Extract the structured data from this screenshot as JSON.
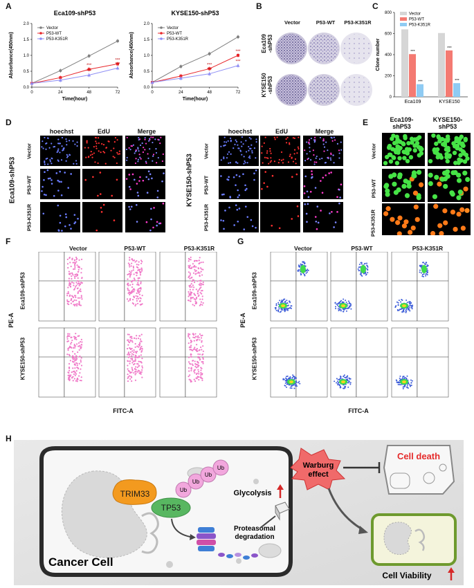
{
  "panels": {
    "A": "A",
    "B": "B",
    "C": "C",
    "D": "D",
    "E": "E",
    "F": "F",
    "G": "G",
    "H": "H"
  },
  "chart_data": [
    {
      "type": "line",
      "title": "Eca109-shP53",
      "xlabel": "Time(hour)",
      "ylabel": "Absorbance(450nm)",
      "x": [
        0,
        24,
        48,
        72
      ],
      "ylim": [
        0,
        2.0
      ],
      "yticks": [
        "0.0",
        "0.5",
        "1.0",
        "1.5",
        "2.0"
      ],
      "xticks": [
        "0",
        "24",
        "48",
        "72"
      ],
      "series": [
        {
          "name": "Vector",
          "color": "#7f7f7f",
          "values": [
            0.12,
            0.52,
            0.98,
            1.45
          ]
        },
        {
          "name": "P53-WT",
          "color": "#e8262a",
          "values": [
            0.12,
            0.3,
            0.56,
            0.73
          ]
        },
        {
          "name": "P53-K351R",
          "color": "#8e8ef5",
          "values": [
            0.12,
            0.22,
            0.38,
            0.6
          ]
        }
      ],
      "annotations": [
        "***",
        "***",
        "***",
        "***"
      ]
    },
    {
      "type": "line",
      "title": "KYSE150-shP53",
      "xlabel": "Time(hour)",
      "ylabel": "Absorbance(450nm)",
      "x": [
        0,
        24,
        48,
        72
      ],
      "ylim": [
        0,
        2.0
      ],
      "yticks": [
        "0.0",
        "0.5",
        "1.0",
        "1.5",
        "2.0"
      ],
      "xticks": [
        "0",
        "24",
        "48",
        "72"
      ],
      "series": [
        {
          "name": "Vector",
          "color": "#7f7f7f",
          "values": [
            0.15,
            0.65,
            1.05,
            1.58
          ]
        },
        {
          "name": "P53-WT",
          "color": "#e8262a",
          "values": [
            0.15,
            0.35,
            0.58,
            1.0
          ]
        },
        {
          "name": "P53-K351R",
          "color": "#8e8ef5",
          "values": [
            0.15,
            0.28,
            0.42,
            0.68
          ]
        }
      ],
      "annotations": [
        "***",
        "***",
        "***",
        "***"
      ]
    },
    {
      "type": "bar",
      "xlabel": "",
      "ylabel": "Clone number",
      "categories": [
        "Eca109",
        "KYSE150"
      ],
      "ylim": [
        0,
        800
      ],
      "yticks": [
        "0",
        "200",
        "400",
        "600",
        "800"
      ],
      "series": [
        {
          "name": "Vector",
          "color": "#d6d6d6",
          "values": [
            640,
            605
          ]
        },
        {
          "name": "P53-WT",
          "color": "#f47a72",
          "values": [
            405,
            440
          ]
        },
        {
          "name": "P53-K351R",
          "color": "#8fcbf3",
          "values": [
            120,
            130
          ]
        }
      ],
      "annotations": [
        "***",
        "***",
        "***",
        "***"
      ]
    }
  ],
  "panelB": {
    "columns": [
      "Vector",
      "P53-WT",
      "P53-K351R"
    ],
    "rows": [
      "Eca109\n-shP53",
      "KYSE150\n-shP53"
    ]
  },
  "panelD": {
    "columns": [
      "hoechst",
      "EdU",
      "Merge"
    ],
    "left_title": "Eca109-shP53",
    "right_title": "KYSE150-shP53",
    "rows": [
      "Vector",
      "P53-WT",
      "P53-K351R"
    ]
  },
  "panelE": {
    "columns": [
      "Eca109-\nshP53",
      "KYSE150-\nshP53"
    ],
    "rows": [
      "Vector",
      "P53-WT",
      "P53-K351R"
    ]
  },
  "panelF": {
    "columns": [
      "Vector",
      "P53-WT",
      "P53-K351R"
    ],
    "rows": [
      "Eca109-shP53",
      "KYSE150-shP53"
    ],
    "ylabel": "PE-A",
    "xlabel": "FITC-A"
  },
  "panelG": {
    "columns": [
      "Vector",
      "P53-WT",
      "P53-K351R"
    ],
    "rows": [
      "Eca109-shP53",
      "KYSE150-shP53"
    ],
    "ylabel": "PE-A",
    "xlabel": "FITC-A"
  },
  "panelH": {
    "trim33": "TRIM33",
    "tp53": "TP53",
    "ub": "Ub",
    "proteasomal": "Proteasomal\ndegradation",
    "glycolysis": "Glycolysis",
    "warburg": "Warburg\neffect",
    "cell_death": "Cell death",
    "cancer_cell": "Cancer Cell",
    "cell_viability": "Cell Viability"
  }
}
